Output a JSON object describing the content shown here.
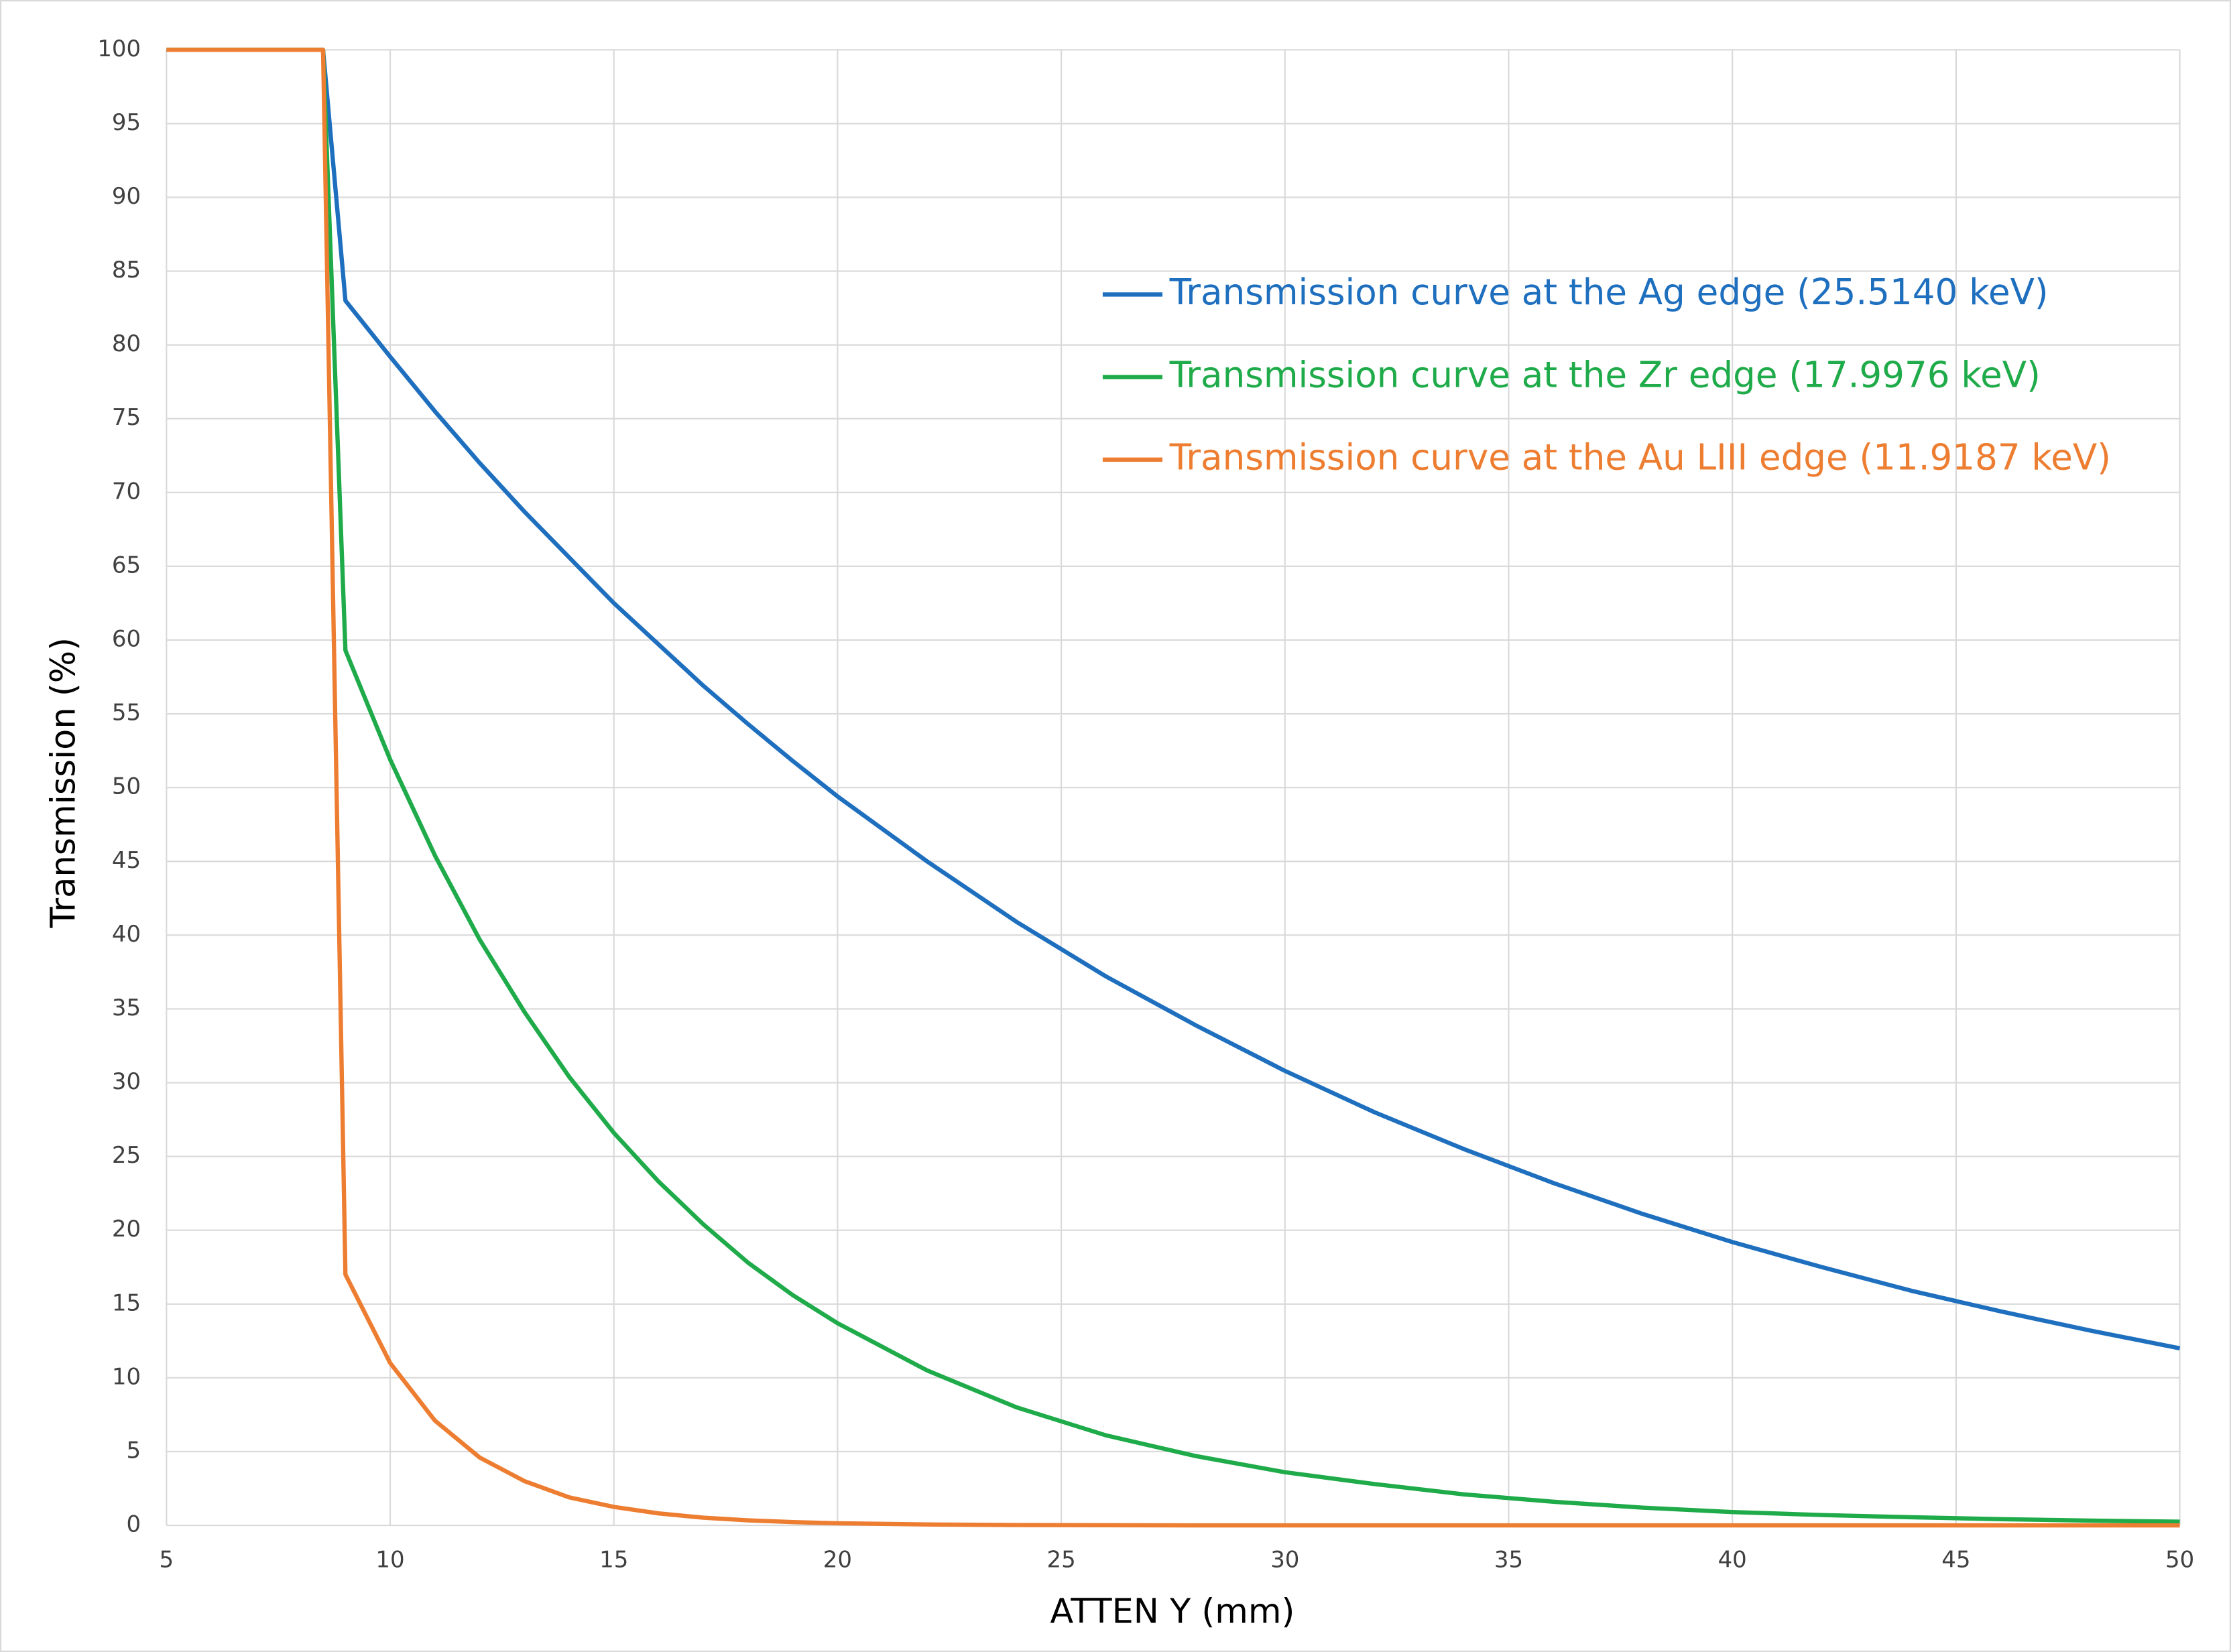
{
  "chart_data": {
    "type": "line",
    "x_label": "ATTEN Y (mm)",
    "y_label": "Transmission (%)",
    "x": [
      5,
      8.5,
      9,
      10,
      11,
      12,
      13,
      14,
      15,
      16,
      17,
      18,
      19,
      20,
      22,
      24,
      26,
      28,
      30,
      32,
      34,
      36,
      38,
      40,
      42,
      44,
      46,
      48,
      50
    ],
    "series": [
      {
        "name": "Transmission curve at the Ag edge (25.5140 keV)",
        "color": "#1f6fbf",
        "values": [
          100,
          100,
          83.0,
          79.2,
          75.5,
          72.0,
          68.7,
          65.6,
          62.5,
          59.7,
          56.9,
          54.3,
          51.8,
          49.4,
          45.0,
          40.9,
          37.2,
          33.9,
          30.8,
          28.0,
          25.5,
          23.2,
          21.1,
          19.2,
          17.5,
          15.9,
          14.5,
          13.2,
          12.0
        ]
      },
      {
        "name": "Transmission curve at the Zr edge (17.9976 keV)",
        "color": "#1fab4a",
        "values": [
          100,
          100,
          59.3,
          51.9,
          45.4,
          39.7,
          34.8,
          30.4,
          26.6,
          23.3,
          20.4,
          17.8,
          15.6,
          13.7,
          10.5,
          8.0,
          6.1,
          4.7,
          3.6,
          2.8,
          2.1,
          1.6,
          1.2,
          0.9,
          0.7,
          0.55,
          0.42,
          0.32,
          0.25
        ]
      },
      {
        "name": "Transmission curve at the Au LIII edge (11.9187 keV)",
        "color": "#ed7d31",
        "values": [
          100,
          100,
          17.0,
          11.0,
          7.1,
          4.6,
          3.0,
          1.9,
          1.25,
          0.81,
          0.52,
          0.34,
          0.22,
          0.14,
          0.06,
          0.02,
          0.01,
          0,
          0,
          0,
          0,
          0,
          0,
          0,
          0,
          0,
          0,
          0,
          0
        ]
      }
    ],
    "xlim": [
      5,
      50
    ],
    "xticks": [
      5,
      10,
      15,
      20,
      25,
      30,
      35,
      40,
      45,
      50
    ],
    "ylim": [
      0,
      100
    ],
    "yticks": [
      0,
      5,
      10,
      15,
      20,
      25,
      30,
      35,
      40,
      45,
      50,
      55,
      60,
      65,
      70,
      75,
      80,
      85,
      90,
      95,
      100
    ],
    "grid": true,
    "legend": "upper right"
  }
}
